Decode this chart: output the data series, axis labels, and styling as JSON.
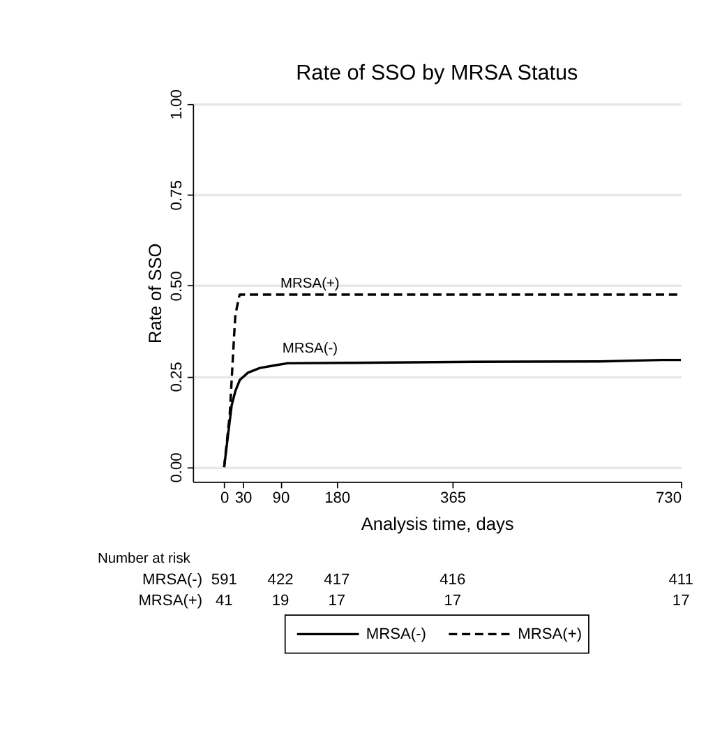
{
  "chart_data": {
    "type": "line",
    "title": "Rate of SSO by MRSA Status",
    "xlabel": "Analysis time, days",
    "ylabel": "Rate of SSO",
    "series": [
      {
        "name": "MRSA(-)",
        "color": "#000000",
        "line_style": "solid",
        "x": [
          0,
          7,
          12,
          18,
          25,
          38,
          57,
          80,
          101,
          200,
          400,
          600,
          700,
          730
        ],
        "values": [
          0,
          0.1,
          0.17,
          0.21,
          0.24,
          0.26,
          0.273,
          0.28,
          0.286,
          0.287,
          0.29,
          0.291,
          0.295,
          0.295
        ]
      },
      {
        "name": "MRSA(+)",
        "color": "#000000",
        "line_style": "dashed",
        "x": [
          0,
          9,
          16,
          18,
          24,
          25,
          730
        ],
        "values": [
          0,
          0.146,
          0.365,
          0.42,
          0.47,
          0.475,
          0.475
        ]
      }
    ],
    "xlim": [
      -50,
      730
    ],
    "xticks": [
      0,
      30,
      90,
      180,
      365,
      730
    ],
    "ylim": [
      -0.04,
      1.0
    ],
    "yticks": [
      {
        "value": 0,
        "label": "0.00"
      },
      {
        "value": 0.25,
        "label": "0.25"
      },
      {
        "value": 0.5,
        "label": "0.50"
      },
      {
        "value": 0.75,
        "label": "0.75"
      },
      {
        "value": 1,
        "label": "1.00"
      }
    ],
    "grid": "y",
    "legend": "bottom",
    "annotations": [
      "Number at risk",
      "591",
      "422",
      "417",
      "416",
      "411",
      "41",
      "19",
      "17",
      "17",
      "17"
    ]
  }
}
